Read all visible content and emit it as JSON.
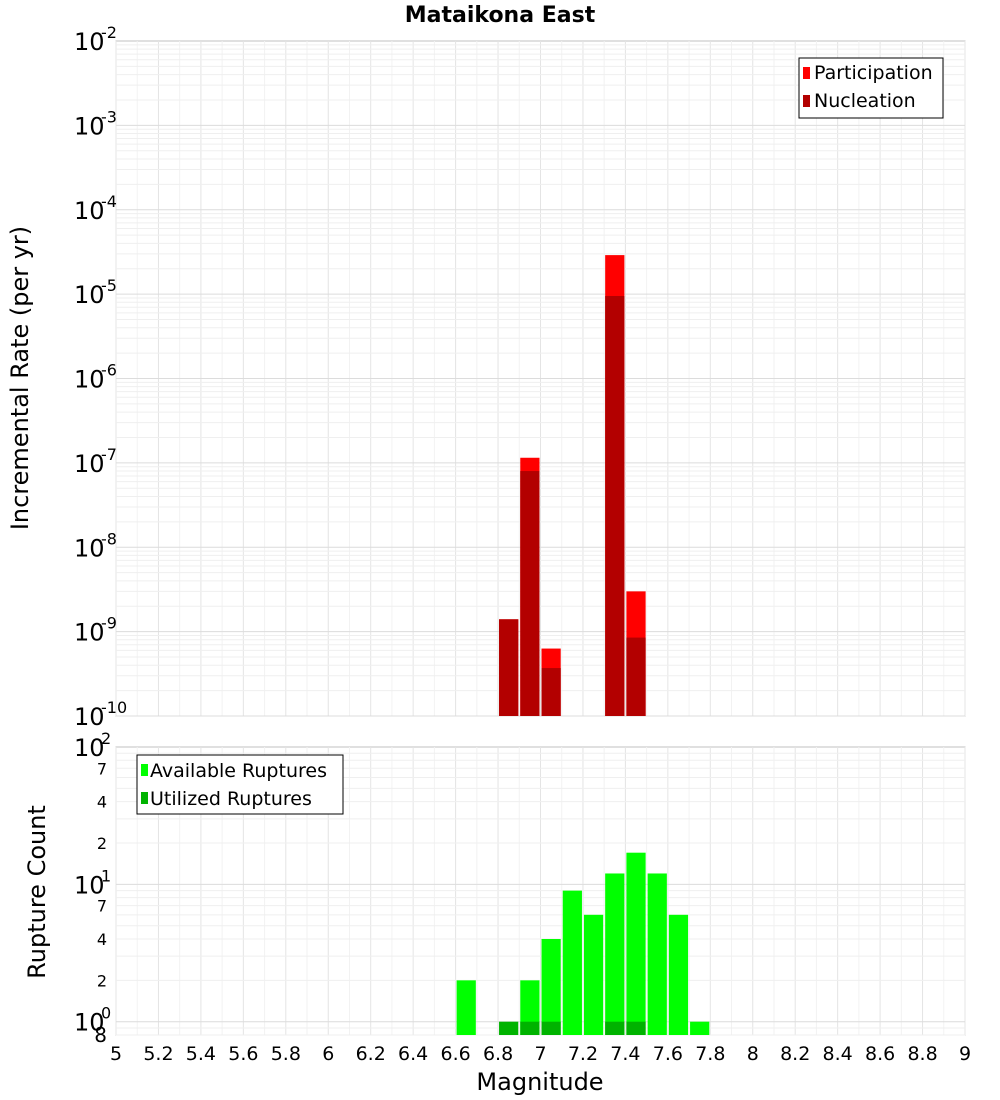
{
  "chart_data": [
    {
      "type": "bar",
      "title": "Mataikona East",
      "ylabel": "Incremental Rate (per yr)",
      "yscale": "log",
      "ylim": [
        1e-10,
        0.01
      ],
      "xlim": [
        5,
        9
      ],
      "bar_width": 0.1,
      "y_tick_exponents": [
        "-2",
        "-3",
        "-4",
        "-5",
        "-6",
        "-7",
        "-8",
        "-9",
        "-10"
      ],
      "y_tick_base": "10",
      "legend_position": "top-right",
      "series": [
        {
          "name": "Participation",
          "color": "#ff0000",
          "x": [
            6.85,
            6.95,
            7.05,
            7.35,
            7.45
          ],
          "values": [
            1.4e-09,
            1.15e-07,
            6.3e-10,
            2.9e-05,
            3e-09
          ]
        },
        {
          "name": "Nucleation",
          "color": "#b30000",
          "x": [
            6.85,
            6.95,
            7.05,
            7.35,
            7.45
          ],
          "values": [
            1.4e-09,
            8e-08,
            3.7e-10,
            9.5e-06,
            8.5e-10
          ]
        }
      ]
    },
    {
      "type": "bar",
      "ylabel": "Rupture Count",
      "xlabel": "Magnitude",
      "yscale": "log",
      "ylim": [
        0.8,
        100
      ],
      "xlim": [
        5,
        9
      ],
      "bar_width": 0.1,
      "x_ticks": [
        "5",
        "5.2",
        "5.4",
        "5.6",
        "5.8",
        "6",
        "6.2",
        "6.4",
        "6.6",
        "6.8",
        "7",
        "7.2",
        "7.4",
        "7.6",
        "7.8",
        "8",
        "8.2",
        "8.4",
        "8.6",
        "8.8",
        "9"
      ],
      "y_major_ticks": [
        {
          "base": "10",
          "exp": "2"
        },
        {
          "base": "10",
          "exp": "1"
        },
        {
          "base": "10",
          "exp": "0"
        }
      ],
      "y_minor_labels": [
        "7",
        "4",
        "2",
        "7",
        "4",
        "2",
        "8"
      ],
      "legend_position": "top-left",
      "series": [
        {
          "name": "Available Ruptures",
          "color": "#00ff00",
          "x": [
            6.65,
            6.95,
            7.05,
            7.15,
            7.25,
            7.35,
            7.45,
            7.55,
            7.65,
            7.75
          ],
          "values": [
            2,
            2,
            4,
            9,
            6,
            12,
            17,
            12,
            6,
            1
          ]
        },
        {
          "name": "Utilized Ruptures",
          "color": "#00b300",
          "x": [
            6.85,
            6.95,
            7.05,
            7.35,
            7.45
          ],
          "values": [
            1,
            1,
            1,
            1,
            1
          ]
        }
      ]
    }
  ]
}
